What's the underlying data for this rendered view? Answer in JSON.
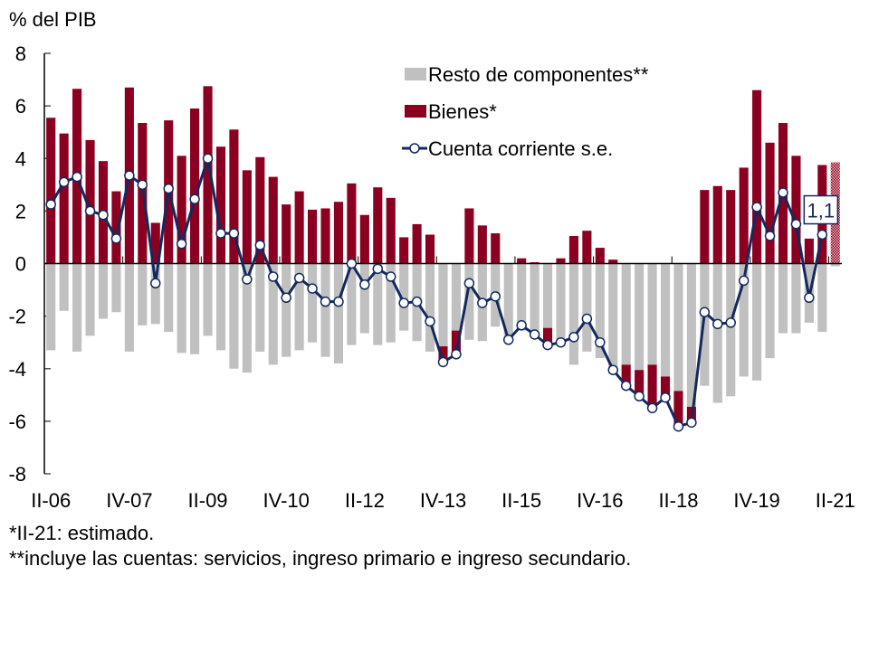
{
  "chart_data": {
    "type": "bar",
    "stacked": true,
    "title": "",
    "ylabel": "% del PIB",
    "xlabel": "",
    "ylim": [
      -8,
      8
    ],
    "yticks": [
      -8,
      -6,
      -4,
      -2,
      0,
      2,
      4,
      6,
      8
    ],
    "grid": false,
    "legend_position": "top-right",
    "categories": [
      "II-06",
      "III-06",
      "IV-06",
      "I-07",
      "II-07",
      "III-07",
      "IV-07",
      "I-08",
      "II-08",
      "III-08",
      "IV-08",
      "I-09",
      "II-09",
      "III-09",
      "IV-09",
      "I-10",
      "II-10",
      "III-10",
      "IV-10",
      "I-11",
      "II-11",
      "III-11",
      "IV-11",
      "I-12",
      "II-12",
      "III-12",
      "IV-12",
      "I-13",
      "II-13",
      "III-13",
      "IV-13",
      "I-14",
      "II-14",
      "III-14",
      "IV-14",
      "I-15",
      "II-15",
      "III-15",
      "IV-15",
      "I-16",
      "II-16",
      "III-16",
      "IV-16",
      "I-17",
      "II-17",
      "III-17",
      "IV-17",
      "I-18",
      "II-18",
      "III-18",
      "IV-18",
      "I-19",
      "II-19",
      "III-19",
      "IV-19",
      "I-20",
      "II-20",
      "III-20",
      "IV-20",
      "I-21",
      "II-21"
    ],
    "xtick_labels": [
      "II-06",
      "IV-07",
      "II-09",
      "IV-10",
      "II-12",
      "IV-13",
      "II-15",
      "IV-16",
      "II-18",
      "IV-19",
      "II-21"
    ],
    "series": [
      {
        "name": "Resto de componentes**",
        "kind": "bar",
        "color": "#c0c0c0",
        "values": [
          -3.3,
          -1.8,
          -3.35,
          -2.75,
          -2.1,
          -1.85,
          -3.35,
          -2.35,
          -2.3,
          -2.6,
          -3.4,
          -3.45,
          -2.75,
          -3.3,
          -4.0,
          -4.15,
          -3.35,
          -3.85,
          -3.55,
          -3.3,
          -3.0,
          -3.55,
          -3.8,
          -3.1,
          -2.65,
          -3.1,
          -3.0,
          -2.55,
          -2.95,
          -3.35,
          -3.15,
          -2.55,
          -2.9,
          -2.95,
          -2.4,
          -2.9,
          -2.55,
          -2.7,
          -2.45,
          -3.15,
          -3.85,
          -3.35,
          -3.6,
          -4.2,
          -3.85,
          -4.05,
          -3.85,
          -4.3,
          -4.85,
          -5.45,
          -4.65,
          -5.3,
          -5.05,
          -4.3,
          -4.45,
          -3.6,
          -2.65,
          -2.65,
          -2.25,
          -2.6,
          -0.1
        ]
      },
      {
        "name": "Bienes*",
        "kind": "bar",
        "color": "#8b0020",
        "values": [
          5.55,
          4.95,
          6.65,
          4.7,
          3.9,
          2.75,
          6.7,
          5.35,
          1.55,
          5.45,
          4.1,
          5.9,
          6.75,
          4.45,
          5.1,
          3.55,
          4.05,
          3.3,
          2.25,
          2.75,
          2.05,
          2.1,
          2.35,
          3.05,
          1.85,
          2.9,
          2.5,
          1.0,
          1.5,
          1.1,
          -0.6,
          -0.9,
          2.1,
          1.45,
          1.15,
          0.0,
          0.2,
          0.05,
          -0.6,
          0.2,
          1.05,
          1.25,
          0.6,
          0.15,
          -0.8,
          -1.1,
          -1.6,
          -0.85,
          -1.35,
          -0.6,
          2.8,
          2.95,
          2.8,
          3.65,
          6.6,
          4.6,
          5.35,
          4.1,
          0.95,
          3.75,
          3.85
        ],
        "estimated_last": true
      },
      {
        "name": "Cuenta corriente s.e.",
        "kind": "line",
        "color": "#13295e",
        "values": [
          2.25,
          3.1,
          3.3,
          2.0,
          1.85,
          0.95,
          3.35,
          3.0,
          -0.75,
          2.85,
          0.75,
          2.45,
          4.0,
          1.15,
          1.15,
          -0.6,
          0.7,
          -0.5,
          -1.3,
          -0.55,
          -0.95,
          -1.45,
          -1.45,
          0.0,
          -0.8,
          -0.2,
          -0.5,
          -1.5,
          -1.45,
          -2.2,
          -3.75,
          -3.45,
          -0.75,
          -1.5,
          -1.25,
          -2.9,
          -2.35,
          -2.7,
          -3.1,
          -3.0,
          -2.8,
          -2.1,
          -3.0,
          -4.05,
          -4.65,
          -5.05,
          -5.5,
          -5.1,
          -6.2,
          -6.05,
          -1.85,
          -2.3,
          -2.25,
          -0.65,
          2.15,
          1.05,
          2.7,
          1.5,
          -1.3,
          1.1,
          null
        ]
      }
    ],
    "annotations": [
      {
        "category": "I-21",
        "series": "Cuenta corriente s.e.",
        "text": "1,1"
      }
    ]
  },
  "footnotes": [
    "*II-21: estimado.",
    "**incluye las cuentas: servicios, ingreso primario e ingreso secundario."
  ]
}
